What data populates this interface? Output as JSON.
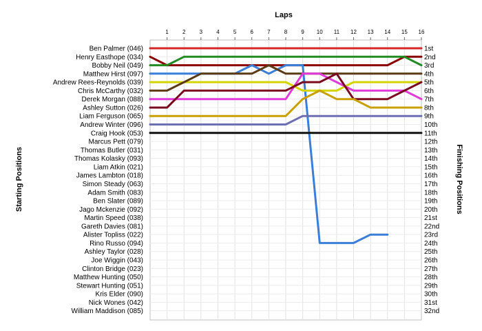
{
  "chart_data": {
    "type": "line",
    "title": "Laps",
    "ylabel_left": "Starting Positions",
    "ylabel_right": "Finishing Positions",
    "x_ticks": [
      1,
      2,
      3,
      4,
      5,
      6,
      7,
      8,
      9,
      10,
      11,
      12,
      13,
      14,
      15,
      16
    ],
    "xlim": [
      0,
      16
    ],
    "ylim": [
      1,
      32
    ],
    "grid": true,
    "starting_positions": [
      "Ben Palmer (046)",
      "Henry Easthope (034)",
      "Bobby Neil (049)",
      "Matthew Hirst (097)",
      "Andrew Rees-Reynolds (039)",
      "Chris McCarthy (032)",
      "Derek Morgan (088)",
      "Ashley Sutton (026)",
      "Liam Ferguson (065)",
      "Andrew Winter (096)",
      "Craig Hook (053)",
      "Marcus Pett (079)",
      "Thomas Butler (031)",
      "Thomas Kolasky (093)",
      "Liam Atkin (021)",
      "James Lambton (018)",
      "Simon Steady (063)",
      "Adam Smith (083)",
      "Ben Slater (089)",
      "Jago Mckenzie (092)",
      "Martin Speed (038)",
      "Gareth Davies (081)",
      "Alister Topliss (022)",
      "Rino Russo (094)",
      "Ashley Taylor (028)",
      "Joe Wiggin (043)",
      "Clinton Bridge (023)",
      "Matthew Hunting (050)",
      "Stewart Hunting (051)",
      "Kris Elder (090)",
      "Nick Wones (042)",
      "William Maddison (085)"
    ],
    "finishing_positions": [
      "1st",
      "2nd",
      "3rd",
      "4th",
      "5th",
      "6th",
      "7th",
      "8th",
      "9th",
      "10th",
      "11th",
      "12th",
      "13th",
      "14th",
      "15th",
      "16th",
      "17th",
      "18th",
      "19th",
      "20th",
      "21st",
      "22nd",
      "23rd",
      "24th",
      "25th",
      "26th",
      "27th",
      "28th",
      "29th",
      "30th",
      "31st",
      "32nd"
    ],
    "series": [
      {
        "start": 1,
        "positions": [
          1,
          1,
          1,
          1,
          1,
          1,
          1,
          1,
          1,
          1,
          1,
          1,
          1,
          1,
          1,
          1
        ],
        "color": "#d62728"
      },
      {
        "start": 2,
        "positions": [
          3,
          3,
          3,
          3,
          3,
          3,
          3,
          3,
          3,
          3,
          3,
          3,
          3,
          3,
          2,
          2
        ],
        "color": "#8b0000"
      },
      {
        "start": 3,
        "positions": [
          3,
          2,
          2,
          2,
          2,
          2,
          2,
          2,
          2,
          2,
          2,
          2,
          2,
          2,
          2,
          3
        ],
        "color": "#228b22"
      },
      {
        "start": 4,
        "positions": [
          4,
          4,
          4,
          4,
          4,
          3,
          4,
          3,
          3,
          24,
          24,
          24,
          23,
          23
        ],
        "color": "#3a7ed8"
      },
      {
        "start": 5,
        "positions": [
          5,
          5,
          5,
          5,
          5,
          5,
          5,
          5,
          6,
          6,
          6,
          5,
          5,
          5,
          5,
          5
        ],
        "color": "#d4d400"
      },
      {
        "start": 6,
        "positions": [
          6,
          5,
          4,
          4,
          4,
          4,
          3,
          4,
          4,
          4,
          4,
          4,
          4,
          4,
          4,
          4
        ],
        "color": "#5b3a14"
      },
      {
        "start": 7,
        "positions": [
          7,
          7,
          7,
          7,
          7,
          7,
          7,
          7,
          4,
          4,
          5,
          6,
          6,
          6,
          6,
          7
        ],
        "color": "#e03ad8"
      },
      {
        "start": 8,
        "positions": [
          8,
          6,
          6,
          6,
          6,
          6,
          6,
          6,
          5,
          5,
          4,
          7,
          7,
          7,
          6,
          5
        ],
        "color": "#7a0a20"
      },
      {
        "start": 9,
        "positions": [
          9,
          9,
          9,
          9,
          9,
          9,
          9,
          9,
          7,
          6,
          7,
          7,
          8,
          8,
          8,
          8
        ],
        "color": "#c8a000"
      },
      {
        "start": 10,
        "positions": [
          10,
          10,
          10,
          10,
          10,
          10,
          10,
          10,
          9,
          9,
          9,
          9,
          9,
          9,
          9,
          9
        ],
        "color": "#6e6eb4"
      },
      {
        "start": 11,
        "positions": [
          11,
          11,
          11,
          11,
          11,
          11,
          11,
          11,
          11,
          11,
          11,
          11,
          11,
          11,
          11,
          11
        ],
        "color": "#111111"
      }
    ]
  }
}
